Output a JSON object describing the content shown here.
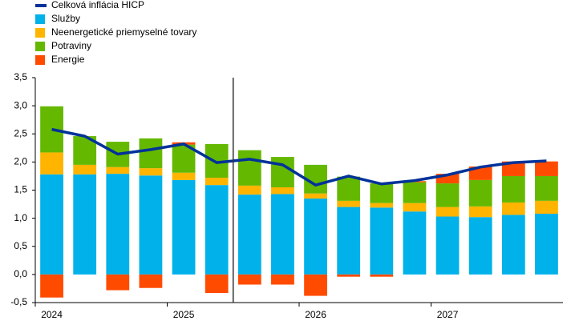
{
  "chart_data": {
    "type": "bar",
    "categories": [
      "2024",
      null,
      null,
      null,
      "2025",
      null,
      null,
      null,
      "2026",
      null,
      null,
      null,
      "2027",
      null,
      null,
      null
    ],
    "series": [
      {
        "name": "Služby",
        "color": "#00b1ea",
        "values": [
          1.78,
          1.78,
          1.79,
          1.76,
          1.68,
          1.59,
          1.42,
          1.43,
          1.35,
          1.2,
          1.19,
          1.12,
          1.03,
          1.02,
          1.06,
          1.08
        ]
      },
      {
        "name": "Neenergetické priemyselné tovary",
        "color": "#ffb400",
        "values": [
          0.39,
          0.17,
          0.12,
          0.13,
          0.13,
          0.13,
          0.16,
          0.12,
          0.09,
          0.11,
          0.08,
          0.15,
          0.17,
          0.19,
          0.22,
          0.23
        ]
      },
      {
        "name": "Potraviny",
        "color": "#65b800",
        "values": [
          0.82,
          0.51,
          0.45,
          0.53,
          0.5,
          0.6,
          0.63,
          0.54,
          0.51,
          0.43,
          0.35,
          0.37,
          0.42,
          0.47,
          0.47,
          0.44
        ]
      },
      {
        "name": "Energie",
        "color": "#ff4b00",
        "values": [
          -0.41,
          0,
          -0.28,
          -0.24,
          0.04,
          -0.33,
          -0.18,
          -0.18,
          -0.38,
          -0.04,
          -0.04,
          0.02,
          0.17,
          0.24,
          0.26,
          0.26
        ]
      }
    ],
    "line": {
      "name": "Celková inflácia HICP",
      "color": "#003299",
      "values": [
        2.58,
        2.46,
        2.14,
        2.22,
        2.32,
        1.99,
        2.05,
        1.95,
        1.59,
        1.75,
        1.61,
        1.67,
        1.77,
        1.91,
        1.99,
        2.02
      ]
    },
    "ylim": [
      -0.5,
      3.5
    ],
    "yticks": [
      {
        "value": -0.5,
        "label": "-0,5"
      },
      {
        "value": 0,
        "label": "0,0"
      },
      {
        "value": 0.5,
        "label": "0,5"
      },
      {
        "value": 1,
        "label": "1,0"
      },
      {
        "value": 1.5,
        "label": "1,5"
      },
      {
        "value": 2,
        "label": "2,0"
      },
      {
        "value": 2.5,
        "label": "2,5"
      },
      {
        "value": 3,
        "label": "3,0"
      },
      {
        "value": 3.5,
        "label": "3,5"
      }
    ],
    "grid": false
  }
}
